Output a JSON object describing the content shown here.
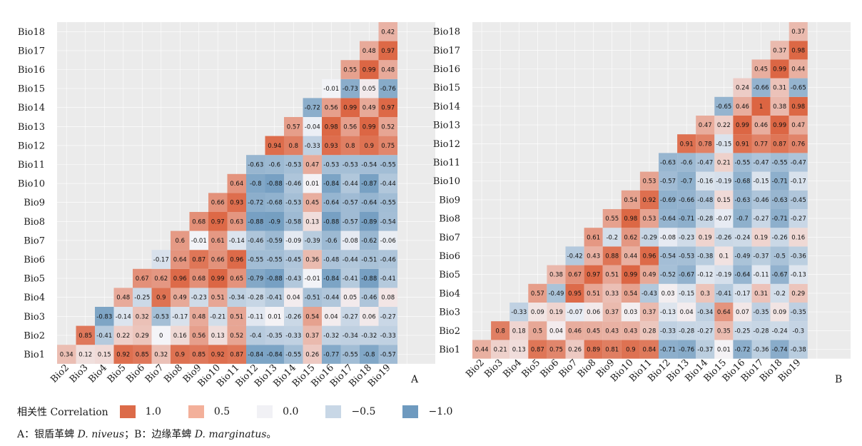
{
  "legend": {
    "title": "相关性  Correlation",
    "items": [
      {
        "label": "1.0",
        "color": "#DC6B49"
      },
      {
        "label": "0.5",
        "color": "#F3B09A"
      },
      {
        "label": "0.0",
        "color": "#F1F1F5"
      },
      {
        "label": "−0.5",
        "color": "#C8D7E6"
      },
      {
        "label": "−1.0",
        "color": "#6E9ABF"
      }
    ]
  },
  "caption": {
    "part1": "A：银盾革蜱 ",
    "species1": "D. niveus",
    "part2": "；B：边缘革蜱 ",
    "species2": "D. marginatus",
    "part3": "。"
  },
  "chart_data": [
    {
      "type": "heatmap",
      "panel_label": "A",
      "rows": [
        "Bio1",
        "Bio2",
        "Bio3",
        "Bio4",
        "Bio5",
        "Bio6",
        "Bio7",
        "Bio8",
        "Bio9",
        "Bio10",
        "Bio11",
        "Bio12",
        "Bio13",
        "Bio14",
        "Bio15",
        "Bio16",
        "Bio17",
        "Bio18"
      ],
      "columns": [
        "Bio2",
        "Bio3",
        "Bio4",
        "Bio5",
        "Bio6",
        "Bio7",
        "Bio8",
        "Bio9",
        "Bio10",
        "Bio11",
        "Bio12",
        "Bio13",
        "Bio14",
        "Bio15",
        "Bio16",
        "Bio17",
        "Bio18",
        "Bio19"
      ],
      "values": [
        [
          "0.34",
          "0.12",
          "0.15",
          "0.92",
          "0.85",
          "0.32",
          "0.9",
          "0.85",
          "0.92",
          "0.87",
          "-0.84",
          "-0.84",
          "-0.55",
          "0.26",
          "-0.77",
          "-0.55",
          "-0.8",
          "-0.57"
        ],
        [
          "0.85",
          "-0.41",
          "0.22",
          "0.29",
          "0",
          "0.16",
          "0.56",
          "0.13",
          "0.52",
          "-0.4",
          "-0.35",
          "-0.33",
          "0.37",
          "-0.32",
          "-0.34",
          "-0.32",
          "-0.33"
        ],
        [
          "-0.83",
          "-0.14",
          "0.32",
          "-0.53",
          "-0.17",
          "0.48",
          "-0.21",
          "0.51",
          "-0.11",
          "0.01",
          "-0.26",
          "0.54",
          "0.04",
          "-0.27",
          "0.06",
          "-0.27"
        ],
        [
          "0.48",
          "-0.25",
          "0.9",
          "0.49",
          "-0.23",
          "0.51",
          "-0.34",
          "-0.28",
          "-0.41",
          "0.04",
          "-0.51",
          "-0.44",
          "0.05",
          "-0.46",
          "0.08"
        ],
        [
          "0.67",
          "0.62",
          "0.96",
          "0.68",
          "0.99",
          "0.65",
          "-0.79",
          "-0.88",
          "-0.43",
          "-0.01",
          "-0.84",
          "-0.41",
          "-0.88",
          "-0.41"
        ],
        [
          "-0.17",
          "0.64",
          "0.87",
          "0.66",
          "0.96",
          "-0.55",
          "-0.55",
          "-0.45",
          "0.36",
          "-0.48",
          "-0.44",
          "-0.51",
          "-0.46"
        ],
        [
          "0.6",
          "-0.01",
          "0.61",
          "-0.14",
          "-0.46",
          "-0.59",
          "-0.09",
          "-0.39",
          "-0.6",
          "-0.08",
          "-0.62",
          "-0.06"
        ],
        [
          "0.68",
          "0.97",
          "0.63",
          "-0.88",
          "-0.9",
          "-0.58",
          "0.13",
          "-0.88",
          "-0.57",
          "-0.89",
          "-0.54"
        ],
        [
          "0.66",
          "0.93",
          "-0.72",
          "-0.68",
          "-0.53",
          "0.45",
          "-0.64",
          "-0.57",
          "-0.64",
          "-0.55"
        ],
        [
          "0.64",
          "-0.8",
          "-0.88",
          "-0.46",
          "0.01",
          "-0.84",
          "-0.44",
          "-0.87",
          "-0.44"
        ],
        [
          "-0.63",
          "-0.6",
          "-0.53",
          "0.47",
          "-0.53",
          "-0.53",
          "-0.54",
          "-0.55"
        ],
        [
          "0.94",
          "0.8",
          "-0.33",
          "0.93",
          "0.8",
          "0.9",
          "0.75"
        ],
        [
          "0.57",
          "-0.04",
          "0.98",
          "0.56",
          "0.99",
          "0.52"
        ],
        [
          "-0.72",
          "0.56",
          "0.99",
          "0.49",
          "0.97"
        ],
        [
          "-0.01",
          "-0.73",
          "0.05",
          "-0.76"
        ],
        [
          "0.55",
          "0.99",
          "0.48"
        ],
        [
          "0.48",
          "0.97"
        ],
        [
          "0.42"
        ]
      ],
      "scale": [
        -1,
        1
      ]
    },
    {
      "type": "heatmap",
      "panel_label": "B",
      "rows": [
        "Bio1",
        "Bio2",
        "Bio3",
        "Bio4",
        "Bio5",
        "Bio6",
        "Bio7",
        "Bio8",
        "Bio9",
        "Bio10",
        "Bio11",
        "Bio12",
        "Bio13",
        "Bio14",
        "Bio15",
        "Bio16",
        "Bio17",
        "Bio18"
      ],
      "columns": [
        "Bio2",
        "Bio3",
        "Bio4",
        "Bio5",
        "Bio6",
        "Bio7",
        "Bio8",
        "Bio9",
        "Bio10",
        "Bio11",
        "Bio12",
        "Bio13",
        "Bio14",
        "Bio15",
        "Bio16",
        "Bio17",
        "Bio18",
        "Bio19"
      ],
      "values": [
        [
          "0.44",
          "0.21",
          "0.13",
          "0.87",
          "0.75",
          "0.26",
          "0.89",
          "0.81",
          "0.9",
          "0.84",
          "-0.71",
          "-0.76",
          "-0.37",
          "0.01",
          "-0.72",
          "-0.36",
          "-0.74",
          "-0.38"
        ],
        [
          "0.8",
          "0.18",
          "0.5",
          "0.04",
          "0.46",
          "0.45",
          "0.43",
          "0.43",
          "0.28",
          "-0.33",
          "-0.28",
          "-0.27",
          "0.35",
          "-0.25",
          "-0.28",
          "-0.24",
          "-0.3"
        ],
        [
          "-0.33",
          "0.09",
          "0.19",
          "-0.07",
          "0.06",
          "0.37",
          "0.03",
          "0.37",
          "-0.13",
          "0.04",
          "-0.34",
          "0.64",
          "0.07",
          "-0.35",
          "0.09",
          "-0.35"
        ],
        [
          "0.57",
          "-0.49",
          "0.95",
          "0.51",
          "0.33",
          "0.54",
          "-0.43",
          "0.03",
          "-0.15",
          "0.3",
          "-0.41",
          "-0.17",
          "0.31",
          "-0.2",
          "0.29"
        ],
        [
          "0.38",
          "0.67",
          "0.97",
          "0.51",
          "0.99",
          "0.49",
          "-0.52",
          "-0.67",
          "-0.12",
          "-0.19",
          "-0.64",
          "-0.11",
          "-0.67",
          "-0.13"
        ],
        [
          "-0.42",
          "0.43",
          "0.88",
          "0.44",
          "0.96",
          "-0.54",
          "-0.53",
          "-0.38",
          "0.1",
          "-0.49",
          "-0.37",
          "-0.5",
          "-0.36"
        ],
        [
          "0.61",
          "-0.2",
          "0.62",
          "-0.29",
          "-0.08",
          "-0.23",
          "0.19",
          "-0.26",
          "-0.24",
          "0.19",
          "-0.26",
          "0.16"
        ],
        [
          "0.55",
          "0.98",
          "0.53",
          "-0.64",
          "-0.71",
          "-0.28",
          "-0.07",
          "-0.7",
          "-0.27",
          "-0.71",
          "-0.27"
        ],
        [
          "0.54",
          "0.92",
          "-0.69",
          "-0.66",
          "-0.48",
          "0.15",
          "-0.63",
          "-0.46",
          "-0.63",
          "-0.45"
        ],
        [
          "0.53",
          "-0.57",
          "-0.7",
          "-0.16",
          "-0.19",
          "-0.68",
          "-0.15",
          "-0.71",
          "-0.17"
        ],
        [
          "-0.63",
          "-0.6",
          "-0.47",
          "0.21",
          "-0.55",
          "-0.47",
          "-0.55",
          "-0.47"
        ],
        [
          "0.91",
          "0.78",
          "-0.15",
          "0.91",
          "0.77",
          "0.87",
          "0.76"
        ],
        [
          "0.47",
          "0.22",
          "0.99",
          "0.46",
          "0.99",
          "0.47"
        ],
        [
          "-0.65",
          "0.46",
          "1",
          "0.38",
          "0.98"
        ],
        [
          "0.24",
          "-0.66",
          "0.31",
          "-0.65"
        ],
        [
          "0.45",
          "0.99",
          "0.44"
        ],
        [
          "0.37",
          "0.98"
        ],
        [
          "0.37"
        ]
      ],
      "scale": [
        -1,
        1
      ]
    }
  ]
}
